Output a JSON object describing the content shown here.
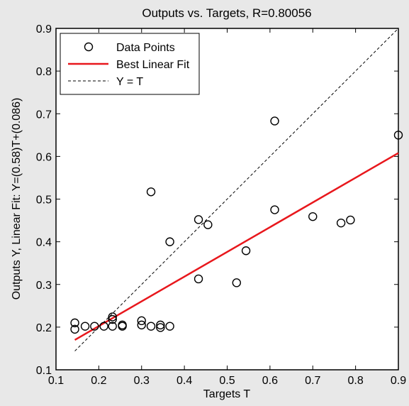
{
  "chart_data": {
    "type": "scatter",
    "title": "Outputs vs. Targets, R=0.80056",
    "xlabel": "Targets T",
    "ylabel": "Outputs Y,  Linear Fit: Y=(0.58)T+(0.086)",
    "xlim": [
      0.1,
      0.9
    ],
    "ylim": [
      0.1,
      0.9
    ],
    "xticks": [
      "0.1",
      "0.2",
      "0.3",
      "0.4",
      "0.5",
      "0.6",
      "0.7",
      "0.8",
      "0.9"
    ],
    "yticks": [
      "0.1",
      "0.2",
      "0.3",
      "0.4",
      "0.5",
      "0.6",
      "0.7",
      "0.8",
      "0.9"
    ],
    "grid": false,
    "legend_position": "top-left",
    "series": [
      {
        "name": "Data Points",
        "marker": "open-circle",
        "color": "#000000",
        "points": [
          [
            0.144,
            0.21
          ],
          [
            0.144,
            0.195
          ],
          [
            0.168,
            0.202
          ],
          [
            0.19,
            0.202
          ],
          [
            0.212,
            0.202
          ],
          [
            0.232,
            0.224
          ],
          [
            0.232,
            0.218
          ],
          [
            0.232,
            0.202
          ],
          [
            0.255,
            0.205
          ],
          [
            0.255,
            0.202
          ],
          [
            0.3,
            0.215
          ],
          [
            0.3,
            0.205
          ],
          [
            0.322,
            0.202
          ],
          [
            0.344,
            0.205
          ],
          [
            0.344,
            0.199
          ],
          [
            0.366,
            0.202
          ],
          [
            0.322,
            0.517
          ],
          [
            0.366,
            0.4
          ],
          [
            0.433,
            0.452
          ],
          [
            0.433,
            0.313
          ],
          [
            0.455,
            0.44
          ],
          [
            0.522,
            0.304
          ],
          [
            0.544,
            0.379
          ],
          [
            0.611,
            0.683
          ],
          [
            0.611,
            0.475
          ],
          [
            0.7,
            0.459
          ],
          [
            0.766,
            0.444
          ],
          [
            0.788,
            0.451
          ],
          [
            0.9,
            0.65
          ]
        ]
      },
      {
        "name": "Best Linear Fit",
        "type": "line",
        "color": "#e8171c",
        "points": [
          [
            0.144,
            0.17
          ],
          [
            0.9,
            0.608
          ]
        ]
      },
      {
        "name": "Y = T",
        "type": "line",
        "style": "dashed",
        "color": "#000000",
        "points": [
          [
            0.144,
            0.144
          ],
          [
            0.9,
            0.9
          ]
        ]
      }
    ]
  }
}
